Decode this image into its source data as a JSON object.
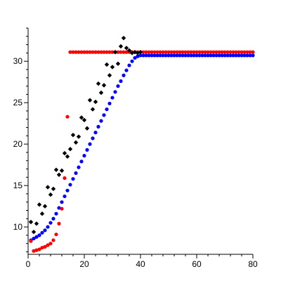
{
  "chart_data": {
    "type": "scatter",
    "xlim": [
      0,
      80
    ],
    "ylim": [
      6.7,
      34
    ],
    "x_ticks": [
      "0",
      "20",
      "40",
      "60",
      "80"
    ],
    "y_ticks": [
      "10",
      "15",
      "20",
      "25",
      "30"
    ],
    "grid": false,
    "series": [
      {
        "color": "#000000",
        "marker": "diamond",
        "x": [
          1,
          2,
          3,
          4,
          5,
          6,
          7,
          8,
          9,
          10,
          11,
          12,
          13,
          14,
          15,
          16,
          17,
          18,
          19,
          20,
          21,
          22,
          23,
          24,
          25,
          26,
          27,
          28,
          29,
          30,
          31,
          32,
          33,
          34,
          35,
          36,
          37,
          38,
          39,
          40
        ],
        "y": [
          10.6,
          9.4,
          10.4,
          12.7,
          11.6,
          12.5,
          14.8,
          13.9,
          14.6,
          16.9,
          16.3,
          16.8,
          18.9,
          18.5,
          19.4,
          21.1,
          20.2,
          20.9,
          23.2,
          22.9,
          21.9,
          25.3,
          24.2,
          25.1,
          27.3,
          26.2,
          27.1,
          29.6,
          28.3,
          29.3,
          31.1,
          29.7,
          31.8,
          32.8,
          31.6,
          31.3,
          31.0,
          31.1,
          31.0,
          31.1
        ]
      },
      {
        "color": "#0000ff",
        "marker": "circle",
        "x": [
          1,
          2,
          3,
          4,
          5,
          6,
          7,
          8,
          9,
          10,
          11,
          12,
          13,
          14,
          15,
          16,
          17,
          18,
          19,
          20,
          21,
          22,
          23,
          24,
          25,
          26,
          27,
          28,
          29,
          30,
          31,
          32,
          33,
          34,
          35,
          36,
          37,
          38,
          39,
          40,
          41,
          42,
          43,
          44,
          45,
          46,
          47,
          48,
          49,
          50,
          51,
          52,
          53,
          54,
          55,
          56,
          57,
          58,
          59,
          60,
          61,
          62,
          63,
          64,
          65,
          66,
          67,
          68,
          69,
          70,
          71,
          72,
          73,
          74,
          75,
          76,
          77,
          78,
          79,
          80
        ],
        "y": [
          8.4,
          8.6,
          8.8,
          9.0,
          9.3,
          9.6,
          10.0,
          10.5,
          11.0,
          11.6,
          12.3,
          13.0,
          13.7,
          14.4,
          15.1,
          15.8,
          16.5,
          17.2,
          17.9,
          18.6,
          19.3,
          20.0,
          20.7,
          21.4,
          22.1,
          22.8,
          23.5,
          24.2,
          24.9,
          25.6,
          26.3,
          27.0,
          27.6,
          28.3,
          28.9,
          29.5,
          30.0,
          30.4,
          30.6,
          30.7,
          30.7,
          30.7,
          30.7,
          30.7,
          30.7,
          30.7,
          30.7,
          30.7,
          30.7,
          30.7,
          30.7,
          30.7,
          30.7,
          30.7,
          30.7,
          30.7,
          30.7,
          30.7,
          30.7,
          30.7,
          30.7,
          30.7,
          30.7,
          30.7,
          30.7,
          30.7,
          30.7,
          30.7,
          30.7,
          30.7,
          30.7,
          30.7,
          30.7,
          30.7,
          30.7,
          30.7,
          30.7,
          30.7,
          30.7,
          30.7
        ]
      },
      {
        "color": "#ff0000",
        "marker": "circle",
        "x": [
          1,
          2,
          3,
          4,
          5,
          6,
          7,
          8,
          9,
          10,
          11,
          12,
          13,
          14,
          15,
          16,
          17,
          18,
          19,
          20,
          21,
          22,
          23,
          24,
          25,
          26,
          27,
          28,
          29,
          30,
          31,
          32,
          33,
          34,
          35,
          36,
          37,
          38,
          39,
          40,
          41,
          42,
          43,
          44,
          45,
          46,
          47,
          48,
          49,
          50,
          51,
          52,
          53,
          54,
          55,
          56,
          57,
          58,
          59,
          60,
          61,
          62,
          63,
          64,
          65,
          66,
          67,
          68,
          69,
          70,
          71,
          72,
          73,
          74,
          75,
          76,
          77,
          78,
          79,
          80
        ],
        "y": [
          8.3,
          7.1,
          7.2,
          7.3,
          7.5,
          7.6,
          7.8,
          8.0,
          8.4,
          9.1,
          10.4,
          12.2,
          15.9,
          23.3,
          31.1,
          31.1,
          31.1,
          31.1,
          31.1,
          31.1,
          31.1,
          31.1,
          31.1,
          31.1,
          31.1,
          31.1,
          31.1,
          31.1,
          31.1,
          31.1,
          31.1,
          31.1,
          31.1,
          31.1,
          31.1,
          31.1,
          31.1,
          31.1,
          31.1,
          31.1,
          31.1,
          31.1,
          31.1,
          31.1,
          31.1,
          31.1,
          31.1,
          31.1,
          31.1,
          31.1,
          31.1,
          31.1,
          31.1,
          31.1,
          31.1,
          31.1,
          31.1,
          31.1,
          31.1,
          31.1,
          31.1,
          31.1,
          31.1,
          31.1,
          31.1,
          31.1,
          31.1,
          31.1,
          31.1,
          31.1,
          31.1,
          31.1,
          31.1,
          31.1,
          31.1,
          31.1,
          31.1,
          31.1,
          31.1,
          31.1
        ]
      }
    ]
  }
}
